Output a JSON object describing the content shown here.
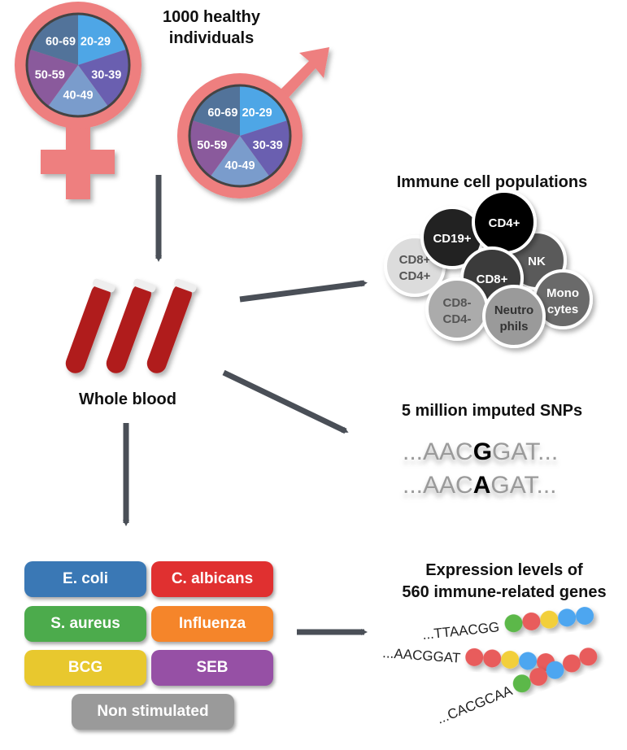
{
  "header": {
    "title_line1": "1000 healthy",
    "title_line2": "individuals"
  },
  "age_groups": [
    {
      "label": "20-29",
      "color": "#4ea6e6"
    },
    {
      "label": "30-39",
      "color": "#6a5fb0"
    },
    {
      "label": "40-49",
      "color": "#7a9ccc"
    },
    {
      "label": "50-59",
      "color": "#8a5a9c"
    },
    {
      "label": "60-69",
      "color": "#52739a"
    }
  ],
  "symbol_color": "#ee7f7f",
  "arrow_color": "#4a4f57",
  "whole_blood": {
    "label": "Whole blood"
  },
  "immune_cells": {
    "title": "Immune cell populations",
    "cells": [
      {
        "line1": "CD8+",
        "line2": "CD4+",
        "color": "#dcdcdc",
        "text_color": "#555"
      },
      {
        "line1": "CD19+",
        "line2": "",
        "color": "#222222",
        "text_color": "#fff"
      },
      {
        "line1": "NK",
        "line2": "",
        "color": "#5a5a5a",
        "text_color": "#fff"
      },
      {
        "line1": "CD4+",
        "line2": "",
        "color": "#000000",
        "text_color": "#fff"
      },
      {
        "line1": "CD8+",
        "line2": "",
        "color": "#3a3a3a",
        "text_color": "#fff"
      },
      {
        "line1": "CD8-",
        "line2": "CD4-",
        "color": "#ababab",
        "text_color": "#555"
      },
      {
        "line1": "Monocytes",
        "line2": "",
        "display1": "Mono",
        "display2": "cytes",
        "color": "#6b6b6b",
        "text_color": "#fff"
      },
      {
        "line1": "Neutrophils",
        "line2": "",
        "display1": "Neutro",
        "display2": "phils",
        "color": "#9a9a9a",
        "text_color": "#333"
      }
    ]
  },
  "snps": {
    "title": "5 million imputed SNPs",
    "seq1": {
      "prefix": "...AAC",
      "variant": "G",
      "suffix": "GAT..."
    },
    "seq2": {
      "prefix": "...AAC",
      "variant": "A",
      "suffix": "GAT..."
    }
  },
  "stimuli": [
    {
      "label": "E. coli",
      "color": "#3a78b5"
    },
    {
      "label": "C. albicans",
      "color": "#e03030"
    },
    {
      "label": "S. aureus",
      "color": "#4cab4c"
    },
    {
      "label": "Influenza",
      "color": "#f5852a"
    },
    {
      "label": "BCG",
      "color": "#e8c82e"
    },
    {
      "label": "SEB",
      "color": "#9650a5"
    },
    {
      "label": "Non stimulated",
      "color": "#9a9a9a"
    }
  ],
  "expression": {
    "title_line1": "Expression levels of",
    "title_line2": "560 immune-related genes",
    "sequences": [
      {
        "text": "...TTAACGG",
        "beads": [
          "#5cb84a",
          "#e85c5c",
          "#f2cf3a",
          "#4ea6f0",
          "#4ea6f0"
        ]
      },
      {
        "text": "...AACGGAT",
        "beads": [
          "#e85c5c",
          "#e85c5c",
          "#f2cf3a",
          "#4ea6f0",
          "#e85c5c"
        ]
      },
      {
        "text": "...CACGCAA",
        "beads": [
          "#5cb84a",
          "#e85c5c",
          "#4ea6f0",
          "#e85c5c",
          "#e85c5c"
        ]
      }
    ]
  }
}
